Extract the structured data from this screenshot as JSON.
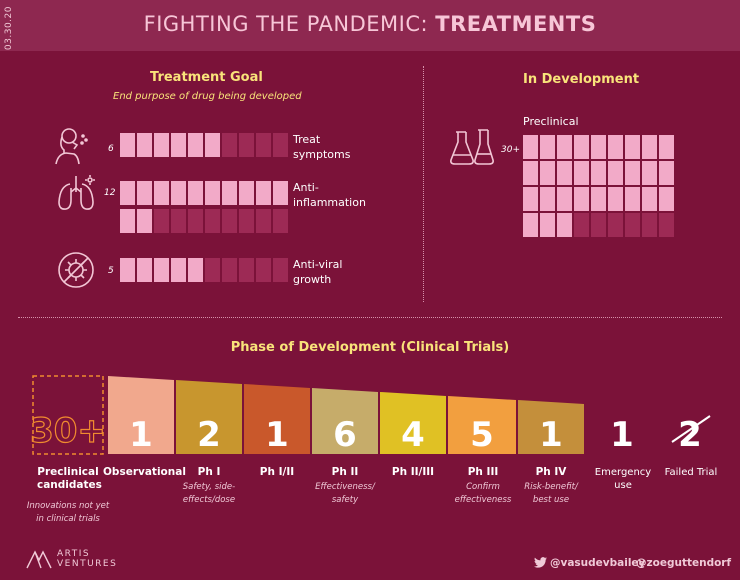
{
  "header": {
    "date": "03.30.20",
    "title_light": "FIGHTING THE PANDEMIC: ",
    "title_bold": "TREATMENTS"
  },
  "treatment_goal": {
    "title": "Treatment Goal",
    "subtitle": "End purpose of drug being developed",
    "items": [
      {
        "count": "6",
        "value": 6,
        "label_line1": "Treat",
        "label_line2": "symptoms",
        "icon": "cough-person-icon"
      },
      {
        "count": "12",
        "value": 12,
        "label_line1": "Anti-",
        "label_line2": "inflammation",
        "icon": "lungs-icon"
      },
      {
        "count": "5",
        "value": 5,
        "label_line1": "Anti-viral",
        "label_line2": "growth",
        "icon": "no-virus-icon"
      }
    ]
  },
  "in_development": {
    "title": "In Development",
    "stage_label": "Preclinical",
    "count": "30+",
    "value": 30,
    "icon": "lab-flasks-icon"
  },
  "phases": {
    "title": "Phase of Development (Clinical Trials)",
    "items": [
      {
        "value": "30+",
        "label": "Preclinical candidates",
        "note": "Innovations not yet in clinical trials",
        "color": "#f08b2f"
      },
      {
        "value": "1",
        "label": "Observational",
        "note": "",
        "color": "#f1a88d"
      },
      {
        "value": "2",
        "label": "Ph I",
        "note": "Safety, side-effects/dose",
        "color": "#c8962e"
      },
      {
        "value": "1",
        "label": "Ph I/II",
        "note": "",
        "color": "#c9582b"
      },
      {
        "value": "6",
        "label": "Ph II",
        "note": "Effectiveness/ safety",
        "color": "#c6ac6a"
      },
      {
        "value": "4",
        "label": "Ph II/III",
        "note": "",
        "color": "#e0c124"
      },
      {
        "value": "5",
        "label": "Ph III",
        "note": "Confirm effectiveness",
        "color": "#f29f3f"
      },
      {
        "value": "1",
        "label": "Ph IV",
        "note": "Risk-benefit/ best use",
        "color": "#c48f3b"
      },
      {
        "value": "1",
        "label": "Emergency use",
        "note": "",
        "color": "#ffffff"
      },
      {
        "value": "2",
        "label": "Failed Trial",
        "note": "",
        "color": "#ffffff"
      }
    ]
  },
  "footer": {
    "brand_line1": "ARTIS",
    "brand_line2": "VENTURES",
    "handle1": "@vasudevbailey",
    "handle2": "@zoeguttendorf"
  },
  "colors": {
    "background": "#7b1239",
    "header": "#8e2850",
    "accent_yellow": "#f9e37a",
    "square_on": "#f2aac8",
    "square_off": "#9d2a55"
  }
}
